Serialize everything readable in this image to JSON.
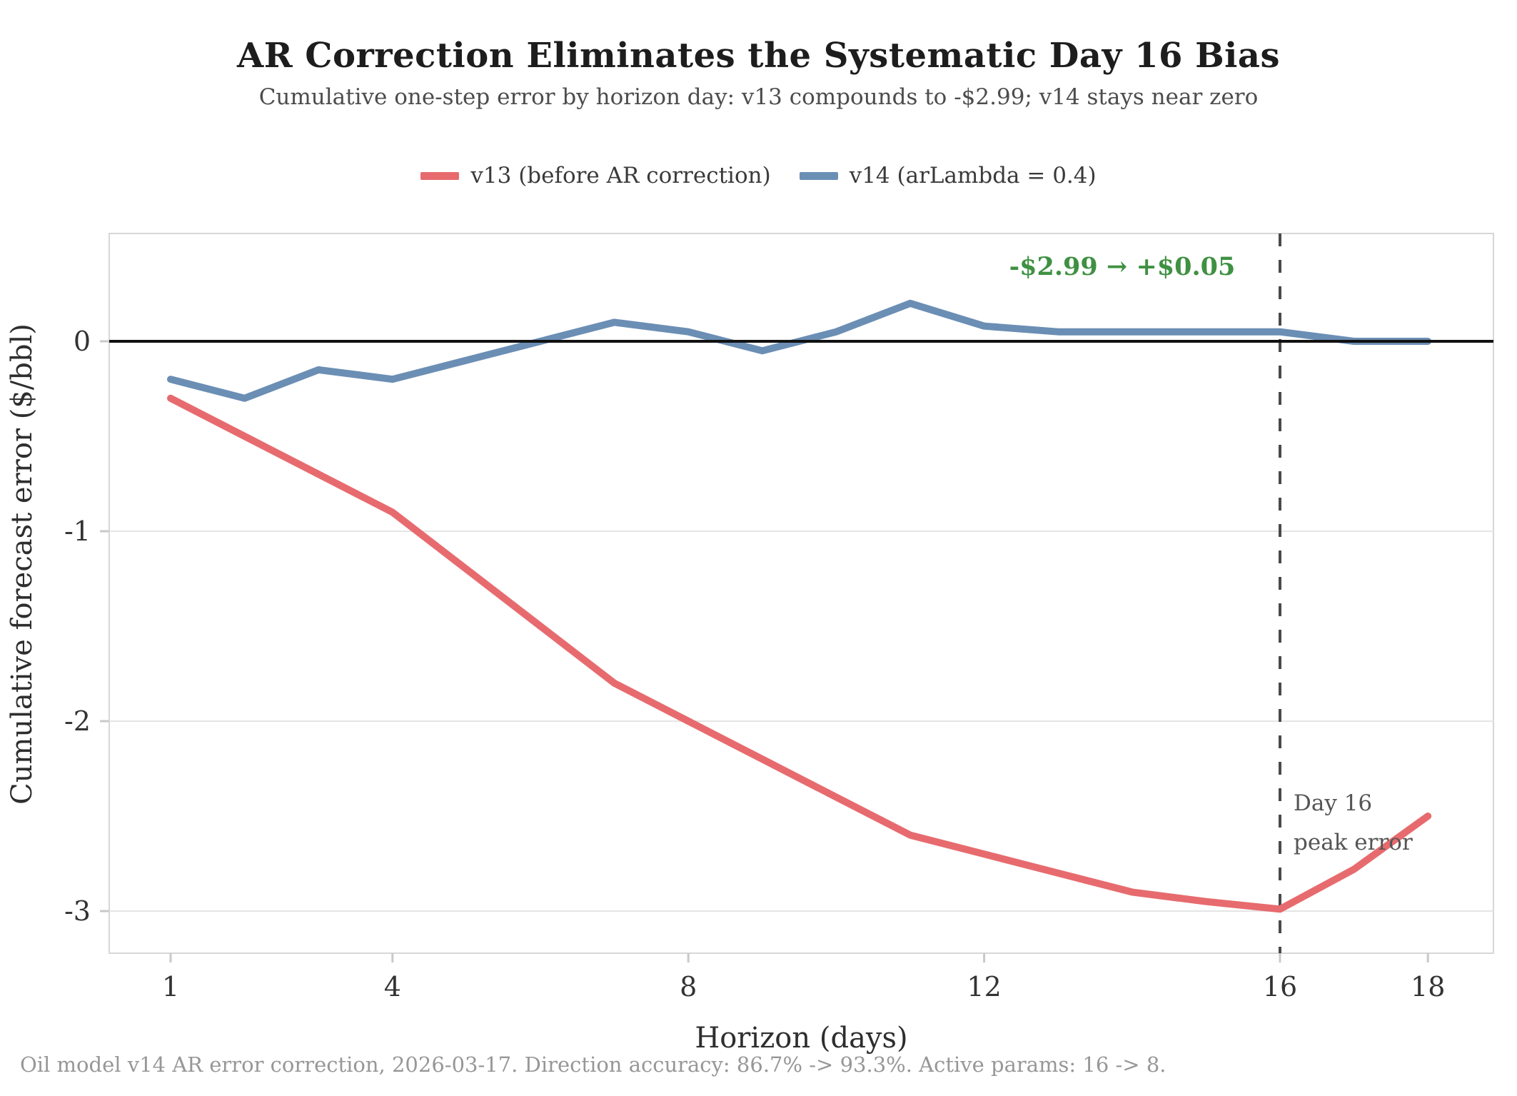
{
  "title": "AR Correction Eliminates the Systematic Day 16 Bias",
  "subtitle": "Cumulative one-step error by horizon day: v13 compounds to -$2.99; v14 stays near zero",
  "footer": "Oil model v14 AR error correction, 2026-03-17. Direction accuracy: 86.7% -> 93.3%. Active params: 16 -> 8.",
  "colors": {
    "v13_red": "#e76b6e",
    "v14_blue": "#6b8eb4",
    "improvement_green": "#3f9142",
    "zero_line": "#111111",
    "dashed_line": "#4a4a4a",
    "gridline": "#e5e5e5",
    "plot_border": "#d7d7d7",
    "tick_mark": "#c9c9c9",
    "tick_text": "#333333",
    "axis_title_text": "#2e2e2e",
    "annotation_gray": "#555555"
  },
  "annotations": {
    "improvement": "-$2.99 → +$0.05",
    "day16_line1": "Day 16",
    "day16_line2": "peak error"
  },
  "chart_data": {
    "type": "line",
    "x": [
      1,
      2,
      3,
      4,
      5,
      6,
      7,
      8,
      9,
      10,
      11,
      12,
      13,
      14,
      15,
      16,
      17,
      18
    ],
    "series": [
      {
        "name": "v13 (before AR correction)",
        "color_key": "v13_red",
        "values": [
          -0.3,
          -0.5,
          -0.7,
          -0.9,
          -1.2,
          -1.5,
          -1.8,
          -2.0,
          -2.2,
          -2.4,
          -2.6,
          -2.7,
          -2.8,
          -2.9,
          -2.95,
          -2.99,
          -2.78,
          -2.5
        ]
      },
      {
        "name": "v14 (arLambda = 0.4)",
        "color_key": "v14_blue",
        "values": [
          -0.2,
          -0.3,
          -0.15,
          -0.2,
          -0.1,
          0.0,
          0.1,
          0.05,
          -0.05,
          0.05,
          0.2,
          0.08,
          0.05,
          0.05,
          0.05,
          0.05,
          0.0,
          0.0
        ]
      }
    ],
    "title": "AR Correction Eliminates the Systematic Day 16 Bias",
    "xlabel": "Horizon (days)",
    "ylabel": "Cumulative forecast error ($/bbl)",
    "xticks": [
      1,
      4,
      8,
      12,
      16,
      18
    ],
    "yticks": [
      0,
      -1,
      -2,
      -3
    ],
    "xlim": [
      0.17,
      18.85
    ],
    "ylim": [
      -3.22,
      0.57
    ],
    "zero_line": true,
    "vline_x": 16,
    "grid": true,
    "legend_position": "top-center"
  }
}
